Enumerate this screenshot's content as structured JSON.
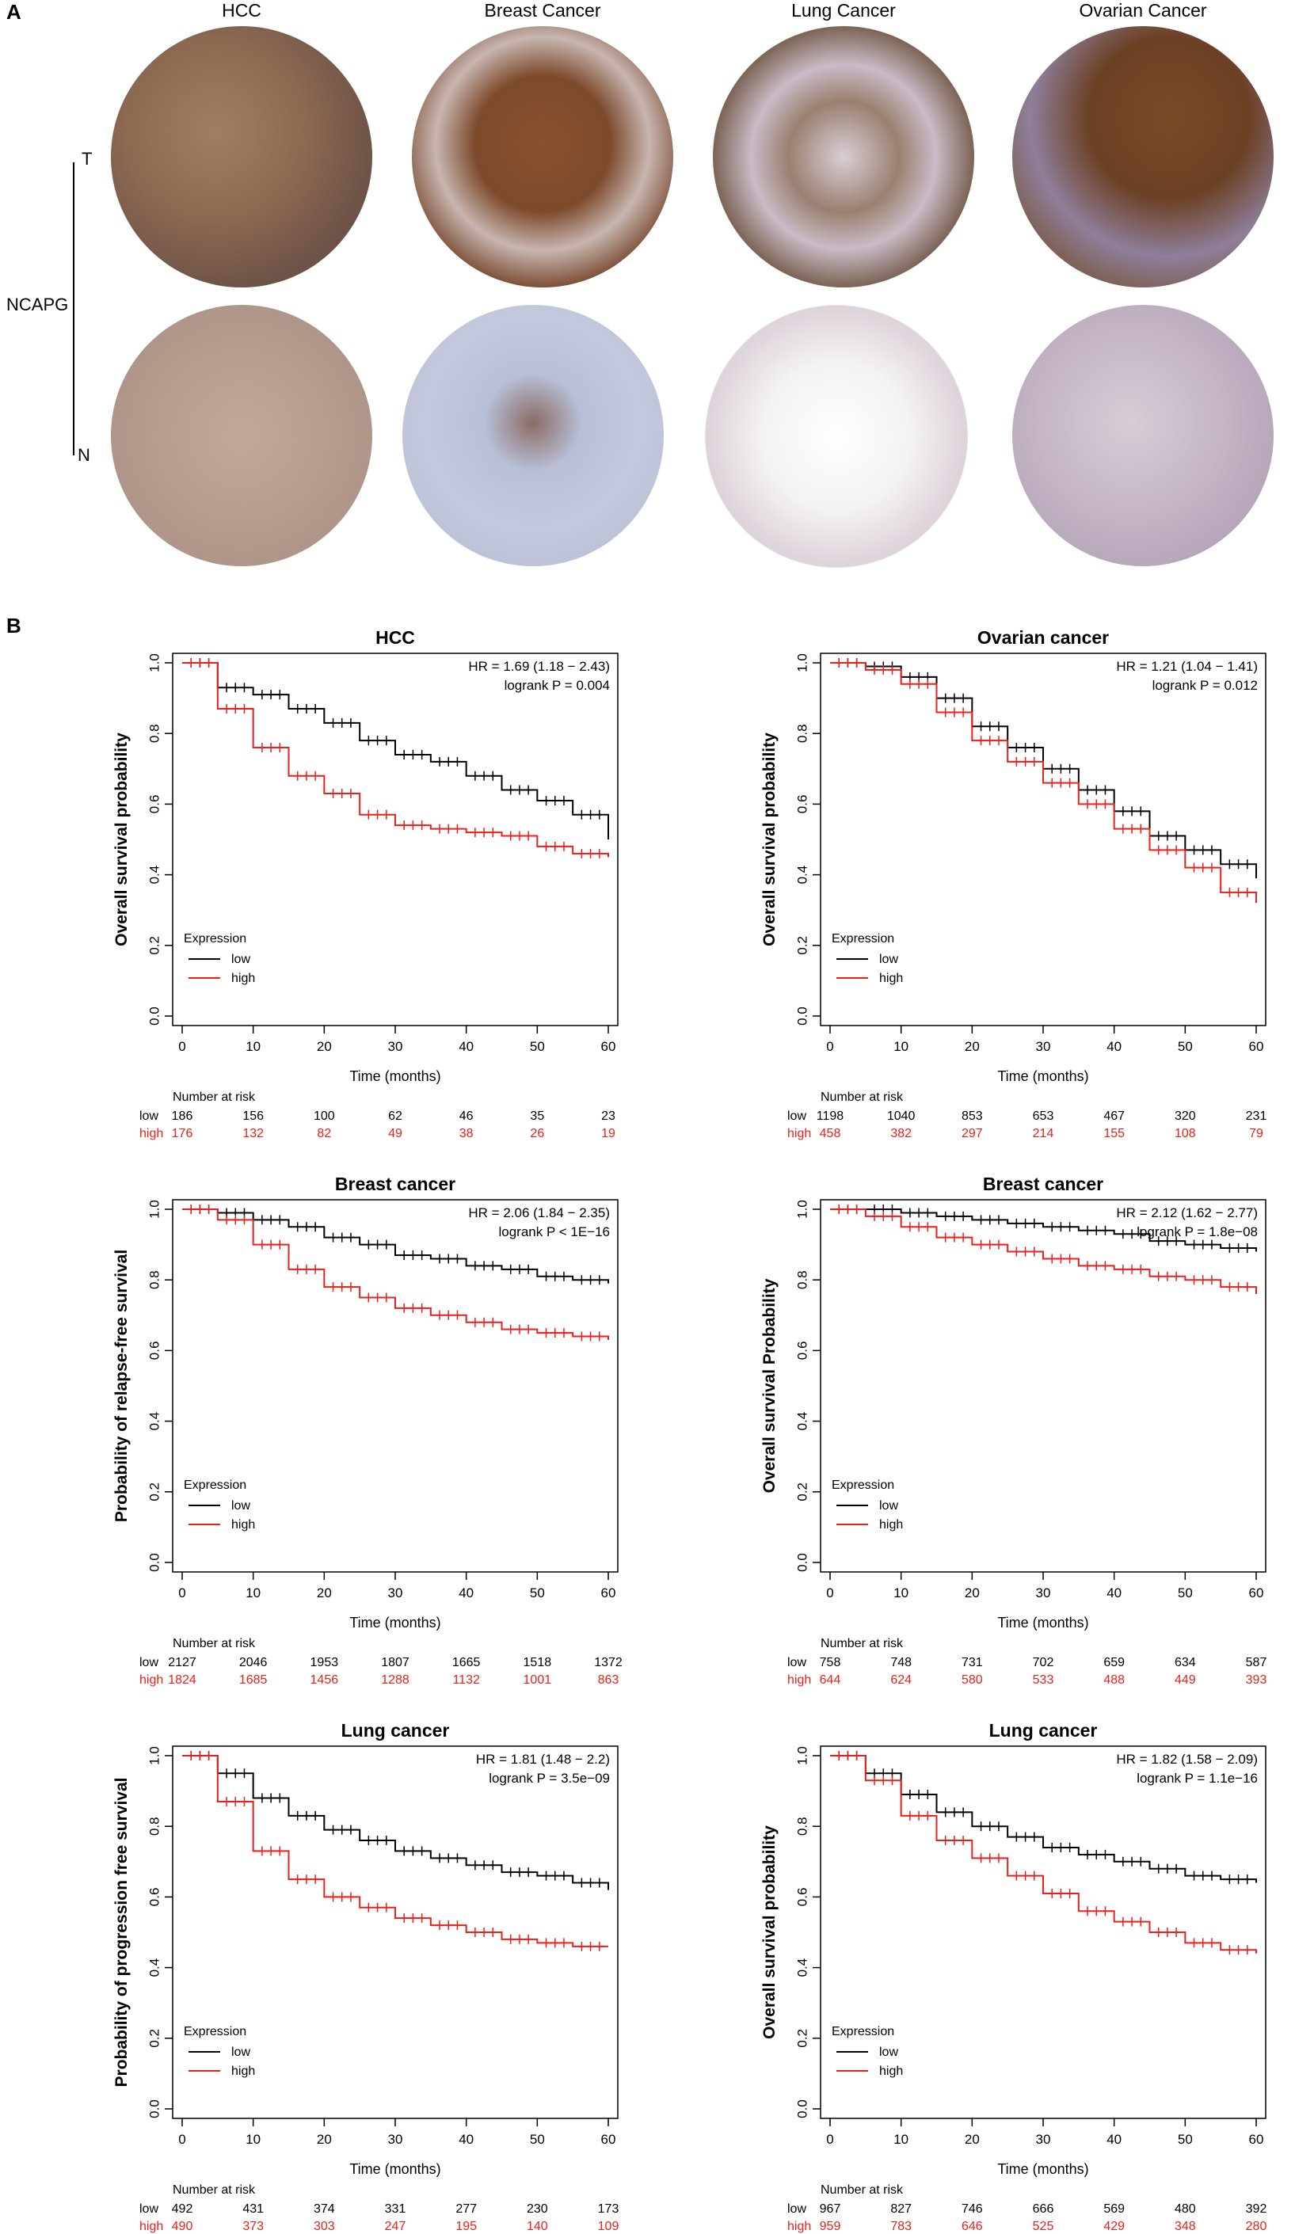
{
  "panel_a": {
    "letter": "A",
    "columns": [
      "HCC",
      "Breast Cancer",
      "Lung Cancer",
      "Ovarian Cancer"
    ],
    "gene": "NCAPG",
    "row_tumor": "T",
    "row_normal": "N"
  },
  "panel_b": {
    "letter": "B"
  },
  "chart_data": [
    {
      "type": "line",
      "title": "HCC",
      "xlabel": "Time (months)",
      "ylabel": "Overall survival probability",
      "xlim": [
        0,
        60
      ],
      "ylim": [
        0,
        1
      ],
      "xticks": [
        "0",
        "10",
        "20",
        "30",
        "40",
        "50",
        "60"
      ],
      "yticks": [
        "0.0",
        "0.2",
        "0.4",
        "0.6",
        "0.8",
        "1.0"
      ],
      "hr_text": "HR = 1.69 (1.18 − 2.43)",
      "p_text": "logrank P = 0.004",
      "legend_title": "Expression",
      "risk_header": "Number at risk",
      "series": [
        {
          "name": "low",
          "color": "#000000",
          "x": [
            0,
            5,
            10,
            15,
            20,
            25,
            30,
            35,
            40,
            45,
            50,
            55,
            60
          ],
          "y": [
            1.0,
            0.93,
            0.91,
            0.87,
            0.83,
            0.78,
            0.74,
            0.72,
            0.68,
            0.64,
            0.61,
            0.57,
            0.5
          ],
          "risk_label": "low",
          "risk": [
            "186",
            "156",
            "100",
            "62",
            "46",
            "35",
            "23"
          ]
        },
        {
          "name": "high",
          "color": "#e8211d",
          "x": [
            0,
            5,
            10,
            15,
            20,
            25,
            30,
            35,
            40,
            45,
            50,
            55,
            60
          ],
          "y": [
            1.0,
            0.87,
            0.76,
            0.68,
            0.63,
            0.57,
            0.54,
            0.53,
            0.52,
            0.51,
            0.48,
            0.46,
            0.45
          ],
          "risk_label": "high",
          "risk": [
            "176",
            "132",
            "82",
            "49",
            "38",
            "26",
            "19"
          ]
        }
      ]
    },
    {
      "type": "line",
      "title": "Ovarian cancer",
      "xlabel": "Time (months)",
      "ylabel": "Overall survival probability",
      "xlim": [
        0,
        60
      ],
      "ylim": [
        0,
        1
      ],
      "xticks": [
        "0",
        "10",
        "20",
        "30",
        "40",
        "50",
        "60"
      ],
      "yticks": [
        "0.0",
        "0.2",
        "0.4",
        "0.6",
        "0.8",
        "1.0"
      ],
      "hr_text": "HR = 1.21 (1.04 − 1.41)",
      "p_text": "logrank P = 0.012",
      "legend_title": "Expression",
      "risk_header": "Number at risk",
      "series": [
        {
          "name": "low",
          "color": "#000000",
          "x": [
            0,
            5,
            10,
            15,
            20,
            25,
            30,
            35,
            40,
            45,
            50,
            55,
            60
          ],
          "y": [
            1.0,
            0.99,
            0.96,
            0.9,
            0.82,
            0.76,
            0.7,
            0.64,
            0.58,
            0.51,
            0.47,
            0.43,
            0.39
          ],
          "risk_label": "low",
          "risk": [
            "1198",
            "1040",
            "853",
            "653",
            "467",
            "320",
            "231"
          ]
        },
        {
          "name": "high",
          "color": "#e8211d",
          "x": [
            0,
            5,
            10,
            15,
            20,
            25,
            30,
            35,
            40,
            45,
            50,
            55,
            60
          ],
          "y": [
            1.0,
            0.98,
            0.94,
            0.86,
            0.78,
            0.72,
            0.66,
            0.6,
            0.53,
            0.47,
            0.42,
            0.35,
            0.32
          ],
          "risk_label": "high",
          "risk": [
            "458",
            "382",
            "297",
            "214",
            "155",
            "108",
            "79"
          ]
        }
      ]
    },
    {
      "type": "line",
      "title": "Breast cancer",
      "xlabel": "Time (months)",
      "ylabel": "Probability of relapse-free survival",
      "xlim": [
        0,
        60
      ],
      "ylim": [
        0,
        1
      ],
      "xticks": [
        "0",
        "10",
        "20",
        "30",
        "40",
        "50",
        "60"
      ],
      "yticks": [
        "0.0",
        "0.2",
        "0.4",
        "0.6",
        "0.8",
        "1.0"
      ],
      "hr_text": "HR = 2.06 (1.84 − 2.35)",
      "p_text": "logrank P < 1E−16",
      "legend_title": "Expression",
      "risk_header": "Number at risk",
      "series": [
        {
          "name": "low",
          "color": "#000000",
          "x": [
            0,
            5,
            10,
            15,
            20,
            25,
            30,
            35,
            40,
            45,
            50,
            55,
            60
          ],
          "y": [
            1.0,
            0.99,
            0.97,
            0.95,
            0.92,
            0.9,
            0.87,
            0.86,
            0.84,
            0.83,
            0.81,
            0.8,
            0.79
          ],
          "risk_label": "low",
          "risk": [
            "2127",
            "2046",
            "1953",
            "1807",
            "1665",
            "1518",
            "1372"
          ]
        },
        {
          "name": "high",
          "color": "#e8211d",
          "x": [
            0,
            5,
            10,
            15,
            20,
            25,
            30,
            35,
            40,
            45,
            50,
            55,
            60
          ],
          "y": [
            1.0,
            0.97,
            0.9,
            0.83,
            0.78,
            0.75,
            0.72,
            0.7,
            0.68,
            0.66,
            0.65,
            0.64,
            0.63
          ],
          "risk_label": "high",
          "risk": [
            "1824",
            "1685",
            "1456",
            "1288",
            "1132",
            "1001",
            "863"
          ]
        }
      ]
    },
    {
      "type": "line",
      "title": "Breast cancer",
      "xlabel": "Time (months)",
      "ylabel": "Overall survival Probability",
      "xlim": [
        0,
        60
      ],
      "ylim": [
        0,
        1
      ],
      "xticks": [
        "0",
        "10",
        "20",
        "30",
        "40",
        "50",
        "60"
      ],
      "yticks": [
        "0.0",
        "0.2",
        "0.4",
        "0.6",
        "0.8",
        "1.0"
      ],
      "hr_text": "HR = 2.12 (1.62 − 2.77)",
      "p_text": "logrank P = 1.8e−08",
      "legend_title": "Expression",
      "risk_header": "Number at risk",
      "series": [
        {
          "name": "low",
          "color": "#000000",
          "x": [
            0,
            5,
            10,
            15,
            20,
            25,
            30,
            35,
            40,
            45,
            50,
            55,
            60
          ],
          "y": [
            1.0,
            1.0,
            0.99,
            0.98,
            0.97,
            0.96,
            0.95,
            0.94,
            0.93,
            0.91,
            0.9,
            0.89,
            0.88
          ],
          "risk_label": "low",
          "risk": [
            "758",
            "748",
            "731",
            "702",
            "659",
            "634",
            "587"
          ]
        },
        {
          "name": "high",
          "color": "#e8211d",
          "x": [
            0,
            5,
            10,
            15,
            20,
            25,
            30,
            35,
            40,
            45,
            50,
            55,
            60
          ],
          "y": [
            1.0,
            0.98,
            0.95,
            0.92,
            0.9,
            0.88,
            0.86,
            0.84,
            0.83,
            0.81,
            0.8,
            0.78,
            0.76
          ],
          "risk_label": "high",
          "risk": [
            "644",
            "624",
            "580",
            "533",
            "488",
            "449",
            "393"
          ]
        }
      ]
    },
    {
      "type": "line",
      "title": "Lung cancer",
      "xlabel": "Time (months)",
      "ylabel": "Probability of progression free survival",
      "xlim": [
        0,
        60
      ],
      "ylim": [
        0,
        1
      ],
      "xticks": [
        "0",
        "10",
        "20",
        "30",
        "40",
        "50",
        "60"
      ],
      "yticks": [
        "0.0",
        "0.2",
        "0.4",
        "0.6",
        "0.8",
        "1.0"
      ],
      "hr_text": "HR = 1.81 (1.48 − 2.2)",
      "p_text": "logrank P = 3.5e−09",
      "legend_title": "Expression",
      "risk_header": "Number at risk",
      "series": [
        {
          "name": "low",
          "color": "#000000",
          "x": [
            0,
            5,
            10,
            15,
            20,
            25,
            30,
            35,
            40,
            45,
            50,
            55,
            60
          ],
          "y": [
            1.0,
            0.95,
            0.88,
            0.83,
            0.79,
            0.76,
            0.73,
            0.71,
            0.69,
            0.67,
            0.66,
            0.64,
            0.62
          ],
          "risk_label": "low",
          "risk": [
            "492",
            "431",
            "374",
            "331",
            "277",
            "230",
            "173"
          ]
        },
        {
          "name": "high",
          "color": "#e8211d",
          "x": [
            0,
            5,
            10,
            15,
            20,
            25,
            30,
            35,
            40,
            45,
            50,
            55,
            60
          ],
          "y": [
            1.0,
            0.87,
            0.73,
            0.65,
            0.6,
            0.57,
            0.54,
            0.52,
            0.5,
            0.48,
            0.47,
            0.46,
            0.46
          ],
          "risk_label": "high",
          "risk": [
            "490",
            "373",
            "303",
            "247",
            "195",
            "140",
            "109"
          ]
        }
      ]
    },
    {
      "type": "line",
      "title": "Lung cancer",
      "xlabel": "Time (months)",
      "ylabel": "Overall survival probability",
      "xlim": [
        0,
        60
      ],
      "ylim": [
        0,
        1
      ],
      "xticks": [
        "0",
        "10",
        "20",
        "30",
        "40",
        "50",
        "60"
      ],
      "yticks": [
        "0.0",
        "0.2",
        "0.4",
        "0.6",
        "0.8",
        "1.0"
      ],
      "hr_text": "HR = 1.82 (1.58 − 2.09)",
      "p_text": "logrank P = 1.1e−16",
      "legend_title": "Expression",
      "risk_header": "Number at risk",
      "series": [
        {
          "name": "low",
          "color": "#000000",
          "x": [
            0,
            5,
            10,
            15,
            20,
            25,
            30,
            35,
            40,
            45,
            50,
            55,
            60
          ],
          "y": [
            1.0,
            0.95,
            0.89,
            0.84,
            0.8,
            0.77,
            0.74,
            0.72,
            0.7,
            0.68,
            0.66,
            0.65,
            0.64
          ],
          "risk_label": "low",
          "risk": [
            "967",
            "827",
            "746",
            "666",
            "569",
            "480",
            "392"
          ]
        },
        {
          "name": "high",
          "color": "#e8211d",
          "x": [
            0,
            5,
            10,
            15,
            20,
            25,
            30,
            35,
            40,
            45,
            50,
            55,
            60
          ],
          "y": [
            1.0,
            0.93,
            0.83,
            0.76,
            0.71,
            0.66,
            0.61,
            0.56,
            0.53,
            0.5,
            0.47,
            0.45,
            0.44
          ],
          "risk_label": "high",
          "risk": [
            "959",
            "783",
            "646",
            "525",
            "429",
            "348",
            "280"
          ]
        }
      ]
    }
  ]
}
